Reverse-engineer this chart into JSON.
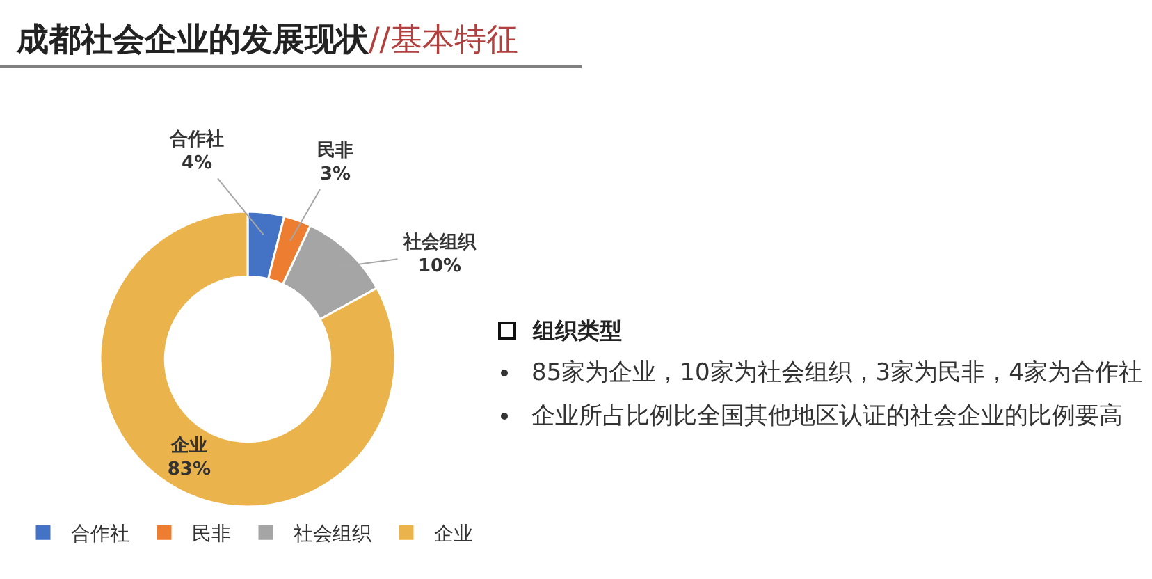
{
  "chart_data": {
    "type": "donut",
    "title": "成都社会企业的发展现状",
    "subtitle": "//基本特征",
    "categories": [
      "合作社",
      "民非",
      "社会组织",
      "企业"
    ],
    "values": [
      4,
      3,
      10,
      83
    ],
    "colors": [
      "#4472c4",
      "#ed7d31",
      "#a5a5a5",
      "#ebb34b"
    ],
    "value_labels": [
      "4%",
      "3%",
      "10%",
      "83%"
    ],
    "legend": "bottom",
    "annotations": [
      "组织类型",
      "85家为企业，10家为社会组织，3家为民非，4家为合作社",
      "企业所占比例比全国其他地区认证的社会企业的比例要高"
    ]
  }
}
